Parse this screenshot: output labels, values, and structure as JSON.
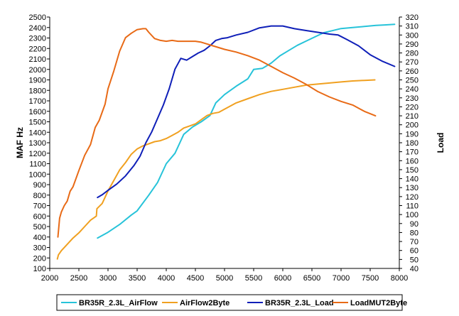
{
  "chart_data": {
    "type": "line",
    "xlabel": "",
    "ylabel": "MAF Hz",
    "y2label": "Load",
    "xlim": [
      2000,
      8000
    ],
    "xticks": [
      2000,
      2500,
      3000,
      3500,
      4000,
      4500,
      5000,
      5500,
      6000,
      6500,
      7000,
      7500,
      8000
    ],
    "ylim": [
      100,
      2500
    ],
    "yticks": [
      100,
      200,
      300,
      400,
      500,
      600,
      700,
      800,
      900,
      1000,
      1100,
      1200,
      1300,
      1400,
      1500,
      1600,
      1700,
      1800,
      1900,
      2000,
      2100,
      2200,
      2300,
      2400,
      2500
    ],
    "y2lim": [
      40,
      320
    ],
    "y2ticks": [
      40,
      50,
      60,
      70,
      80,
      90,
      100,
      110,
      120,
      130,
      140,
      150,
      160,
      170,
      180,
      190,
      200,
      210,
      220,
      230,
      240,
      250,
      260,
      270,
      280,
      290,
      300,
      310,
      320
    ],
    "grid": false,
    "legend": "bottom",
    "series": [
      {
        "name": "BR35R_2.3L_AirFlow",
        "color": "#27c3d9",
        "axis": "left",
        "x": [
          2820,
          3000,
          3200,
          3400,
          3500,
          3700,
          3850,
          4000,
          4150,
          4300,
          4450,
          4600,
          4750,
          4850,
          5000,
          5200,
          5400,
          5500,
          5650,
          5800,
          5950,
          6100,
          6250,
          6400,
          6550,
          6700,
          6850,
          7000,
          7200,
          7400,
          7600,
          7750,
          7920
        ],
        "y": [
          390,
          445,
          520,
          610,
          650,
          800,
          920,
          1100,
          1200,
          1380,
          1450,
          1500,
          1560,
          1680,
          1760,
          1840,
          1910,
          2000,
          2010,
          2060,
          2130,
          2180,
          2230,
          2270,
          2310,
          2350,
          2370,
          2390,
          2400,
          2410,
          2420,
          2425,
          2430
        ]
      },
      {
        "name": "AirFlow2Byte",
        "color": "#f0a020",
        "axis": "left",
        "x": [
          2130,
          2150,
          2200,
          2300,
          2400,
          2500,
          2600,
          2700,
          2800,
          2810,
          2900,
          3000,
          3100,
          3200,
          3300,
          3400,
          3500,
          3600,
          3700,
          3800,
          3900,
          4000,
          4100,
          4200,
          4300,
          4400,
          4500,
          4600,
          4700,
          4800,
          4900,
          5000,
          5200,
          5400,
          5600,
          5800,
          6000,
          6200,
          6400,
          6600,
          6800,
          7000,
          7200,
          7400,
          7580
        ],
        "y": [
          190,
          230,
          270,
          330,
          390,
          440,
          500,
          560,
          600,
          670,
          720,
          840,
          940,
          1040,
          1110,
          1190,
          1240,
          1270,
          1290,
          1310,
          1320,
          1340,
          1370,
          1400,
          1440,
          1460,
          1480,
          1520,
          1560,
          1580,
          1590,
          1620,
          1680,
          1720,
          1760,
          1790,
          1810,
          1830,
          1850,
          1860,
          1870,
          1880,
          1890,
          1895,
          1900
        ]
      },
      {
        "name": "BR35R_2.3L_Load",
        "color": "#0f1fb8",
        "axis": "right",
        "x": [
          2820,
          2900,
          3000,
          3150,
          3300,
          3450,
          3550,
          3650,
          3750,
          3850,
          3950,
          4050,
          4150,
          4250,
          4350,
          4450,
          4550,
          4650,
          4750,
          4850,
          4950,
          5050,
          5200,
          5400,
          5600,
          5800,
          6000,
          6200,
          6400,
          6600,
          6700,
          6800,
          6950,
          7100,
          7300,
          7500,
          7700,
          7920
        ],
        "y": [
          119,
          122,
          127,
          134,
          143,
          155,
          165,
          180,
          192,
          207,
          222,
          240,
          262,
          274,
          272,
          276,
          280,
          283,
          288,
          294,
          296,
          297,
          300,
          303,
          308,
          310,
          310,
          307,
          305,
          303,
          302,
          301,
          300,
          295,
          288,
          278,
          271,
          265
        ]
      },
      {
        "name": "LoadMUT2Byte",
        "color": "#e86a16",
        "axis": "right",
        "x": [
          2140,
          2170,
          2200,
          2250,
          2300,
          2350,
          2400,
          2500,
          2600,
          2700,
          2780,
          2850,
          2950,
          3000,
          3100,
          3200,
          3300,
          3400,
          3500,
          3600,
          3650,
          3700,
          3800,
          3900,
          4000,
          4100,
          4200,
          4300,
          4400,
          4500,
          4600,
          4700,
          4800,
          5000,
          5200,
          5400,
          5600,
          5800,
          6000,
          6200,
          6400,
          6600,
          6800,
          7000,
          7200,
          7400,
          7590
        ],
        "y": [
          75,
          96,
          103,
          110,
          115,
          126,
          131,
          149,
          166,
          178,
          197,
          205,
          223,
          240,
          260,
          282,
          297,
          302,
          306,
          307,
          307,
          303,
          296,
          294,
          293,
          294,
          293,
          293,
          293,
          293,
          292,
          290,
          288,
          284,
          281,
          277,
          272,
          265,
          258,
          252,
          245,
          237,
          231,
          226,
          222,
          215,
          210
        ]
      }
    ]
  }
}
